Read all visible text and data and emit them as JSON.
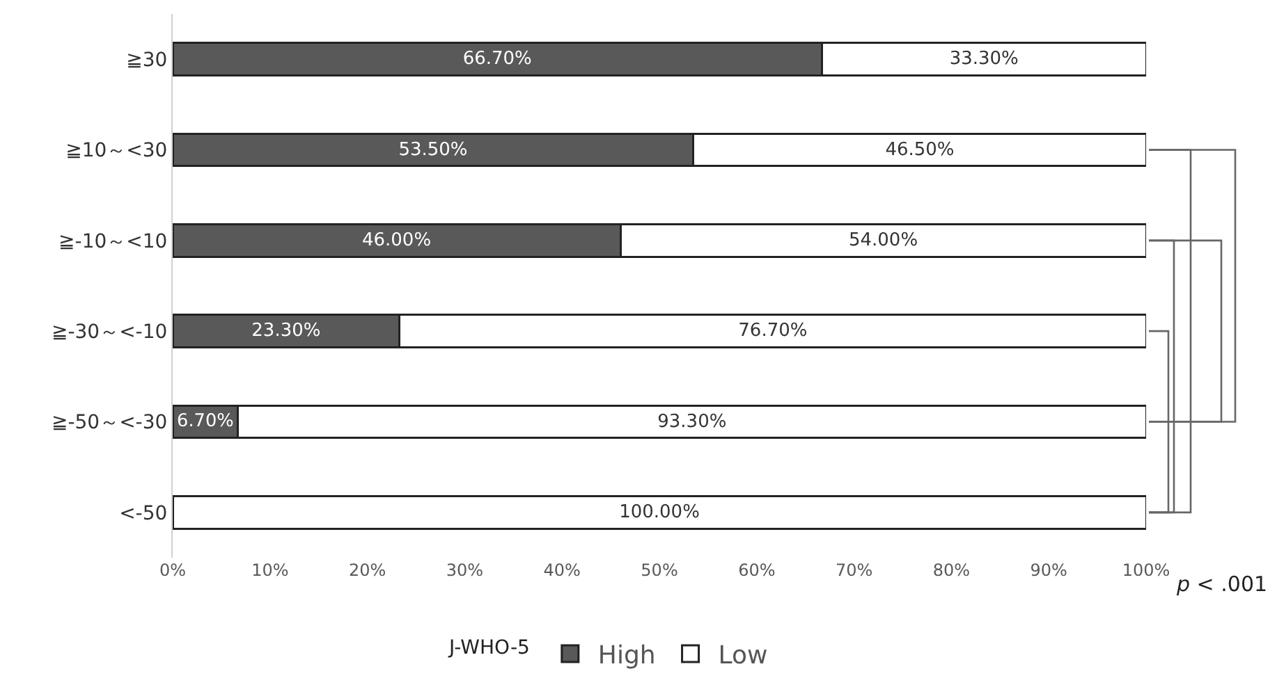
{
  "chart_data": {
    "type": "bar",
    "orientation": "horizontal",
    "stacked": true,
    "categories": [
      "≧30",
      "≧10～<30",
      "≧-10～<10",
      "≧-30～<-10",
      "≧-50～<-30",
      "<-50"
    ],
    "series": [
      {
        "name": "High",
        "color": "#595959",
        "values": [
          66.7,
          53.5,
          46.0,
          23.3,
          6.7,
          0
        ],
        "value_labels": [
          "66.70%",
          "53.50%",
          "46.00%",
          "23.30%",
          "6.70%",
          null
        ]
      },
      {
        "name": "Low",
        "color": "#ffffff",
        "values": [
          33.3,
          46.5,
          54.0,
          76.7,
          93.3,
          100.0
        ],
        "value_labels": [
          "33.30%",
          "46.50%",
          "54.00%",
          "76.70%",
          "93.30%",
          "100.00%"
        ]
      }
    ],
    "xlim": [
      0,
      100
    ],
    "xticks": [
      {
        "value": 0,
        "label": "0%"
      },
      {
        "value": 10,
        "label": "10%"
      },
      {
        "value": 20,
        "label": "20%"
      },
      {
        "value": 30,
        "label": "30%"
      },
      {
        "value": 40,
        "label": "40%"
      },
      {
        "value": 50,
        "label": "50%"
      },
      {
        "value": 60,
        "label": "60%"
      },
      {
        "value": 70,
        "label": "70%"
      },
      {
        "value": 80,
        "label": "80%"
      },
      {
        "value": 90,
        "label": "90%"
      },
      {
        "value": 100,
        "label": "100%"
      }
    ],
    "legend_title": "J-WHO-5",
    "legend": "bottom",
    "annotations": [
      "p < .001"
    ]
  }
}
